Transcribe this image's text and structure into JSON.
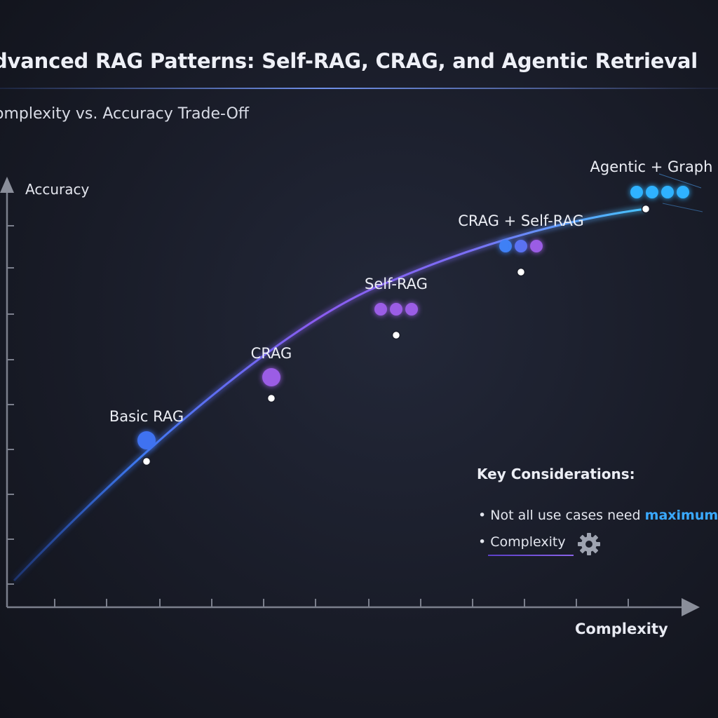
{
  "title": "dvanced RAG Patterns: Self-RAG, CRAG, and Agentic Retrieval",
  "subtitle": "omplexity vs. Accuracy Trade-Off",
  "chart_data": {
    "type": "line",
    "xlabel": "Complexity",
    "ylabel": "Accuracy",
    "grid": false,
    "points": [
      {
        "label": "Basic RAG",
        "x": 1,
        "y": 1,
        "markers": [
          "#3f72f0"
        ]
      },
      {
        "label": "CRAG",
        "x": 2,
        "y": 2,
        "markers": [
          "#9b5de5"
        ]
      },
      {
        "label": "Self-RAG",
        "x": 3,
        "y": 3,
        "markers": [
          "#9b5de5",
          "#9b5de5",
          "#9b5de5"
        ]
      },
      {
        "label": "CRAG + Self-RAG",
        "x": 4,
        "y": 4,
        "markers": [
          "#3f80f5",
          "#5a72f2",
          "#9b5de5"
        ]
      },
      {
        "label": "Agentic + Graph",
        "x": 5,
        "y": 5,
        "markers": [
          "#2fb2ff",
          "#2fb2ff",
          "#2fb2ff",
          "#2fb2ff"
        ]
      }
    ]
  },
  "notes": {
    "heading": "Key Considerations:",
    "item1_text": "Not all use cases need ",
    "item1_highlight": "maximum a",
    "item2_text": "Complexity",
    "bullet": "•"
  },
  "icons": {
    "gear": "gear-icon"
  }
}
